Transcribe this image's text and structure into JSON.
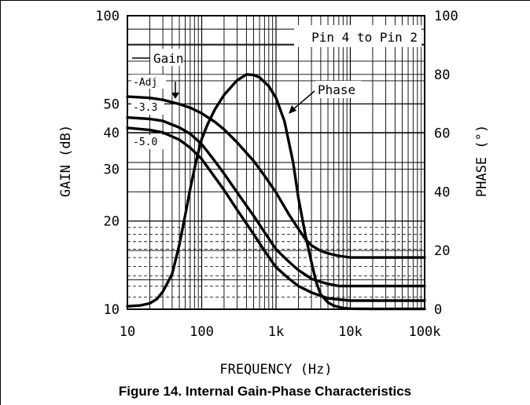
{
  "caption": "Figure 14. Internal Gain-Phase Characteristics",
  "chart_data": {
    "type": "line",
    "title": "",
    "xlabel": "FREQUENCY (Hz)",
    "ylabel_left": "GAIN (dB)",
    "ylabel_right": "PHASE (°)",
    "x_scale": "log",
    "xlim": [
      10,
      100000
    ],
    "y_left_scale": "log",
    "y_left_lim": [
      10,
      100
    ],
    "y_right_lim": [
      0,
      100
    ],
    "x_ticks": [
      "10",
      "100",
      "1k",
      "10k",
      "100k"
    ],
    "x_tick_values": [
      10,
      100,
      1000,
      10000,
      100000
    ],
    "y_left_ticks": [
      "10",
      "20",
      "30",
      "40",
      "50",
      "100"
    ],
    "y_left_tick_values": [
      10,
      20,
      30,
      40,
      50,
      100
    ],
    "y_right_ticks": [
      "0",
      "20",
      "40",
      "60",
      "80",
      "100"
    ],
    "y_right_tick_values": [
      0,
      20,
      40,
      60,
      80,
      100
    ],
    "grid": true,
    "annotations": {
      "box_label": "Pin 4 to Pin 2",
      "gain_label": "Gain",
      "phase_label": "Phase"
    },
    "series": [
      {
        "name": "-Adj",
        "axis": "left",
        "x": [
          10,
          20,
          30,
          50,
          70,
          100,
          150,
          200,
          300,
          500,
          700,
          1000,
          1500,
          2000,
          2500,
          3000,
          4000,
          5000,
          7000,
          10000,
          20000,
          50000,
          100000
        ],
        "y": [
          53,
          52.5,
          51.7,
          50,
          48.6,
          46.5,
          43.5,
          41,
          37,
          32,
          28.5,
          25,
          21,
          18.8,
          17.3,
          16.5,
          15.8,
          15.5,
          15.2,
          15,
          15,
          15,
          15
        ]
      },
      {
        "name": "-3.3",
        "axis": "left",
        "x": [
          10,
          20,
          30,
          50,
          70,
          100,
          150,
          200,
          300,
          500,
          700,
          1000,
          1500,
          2000,
          3000,
          4000,
          5000,
          7000,
          10000,
          20000,
          50000,
          100000
        ],
        "y": [
          45,
          44.5,
          43.8,
          41.6,
          39.6,
          36.5,
          32,
          29,
          25,
          20.8,
          18.3,
          16,
          14.5,
          13.6,
          12.7,
          12.4,
          12.2,
          12,
          12,
          12,
          12,
          12
        ]
      },
      {
        "name": "-5.0",
        "axis": "left",
        "x": [
          10,
          20,
          30,
          50,
          70,
          100,
          150,
          200,
          300,
          500,
          700,
          1000,
          1500,
          2000,
          3000,
          4000,
          5000,
          7000,
          10000,
          20000,
          50000,
          100000
        ],
        "y": [
          41.5,
          40.8,
          40,
          37.8,
          35.5,
          32.5,
          28.2,
          25.5,
          21.8,
          18,
          15.8,
          13.9,
          12.7,
          12,
          11.4,
          11.1,
          10.9,
          10.8,
          10.7,
          10.7,
          10.7,
          10.7
        ]
      },
      {
        "name": "Phase",
        "axis": "right",
        "x": [
          10,
          15,
          20,
          25,
          30,
          40,
          50,
          60,
          70,
          85,
          100,
          120,
          150,
          200,
          300,
          400,
          500,
          600,
          800,
          1000,
          1300,
          1700,
          2000,
          2500,
          3000,
          3500,
          4000,
          5000,
          6000,
          8000,
          10000,
          20000,
          50000,
          100000
        ],
        "y": [
          1,
          1.3,
          2,
          3.5,
          6,
          12,
          22,
          32,
          41,
          51,
          58,
          63,
          68,
          73,
          78,
          80,
          79.8,
          79,
          76,
          72,
          64,
          50,
          38,
          25,
          16,
          9,
          5,
          2.3,
          1.2,
          0.4,
          0.2,
          0.1,
          0.1,
          0.1
        ]
      }
    ]
  }
}
